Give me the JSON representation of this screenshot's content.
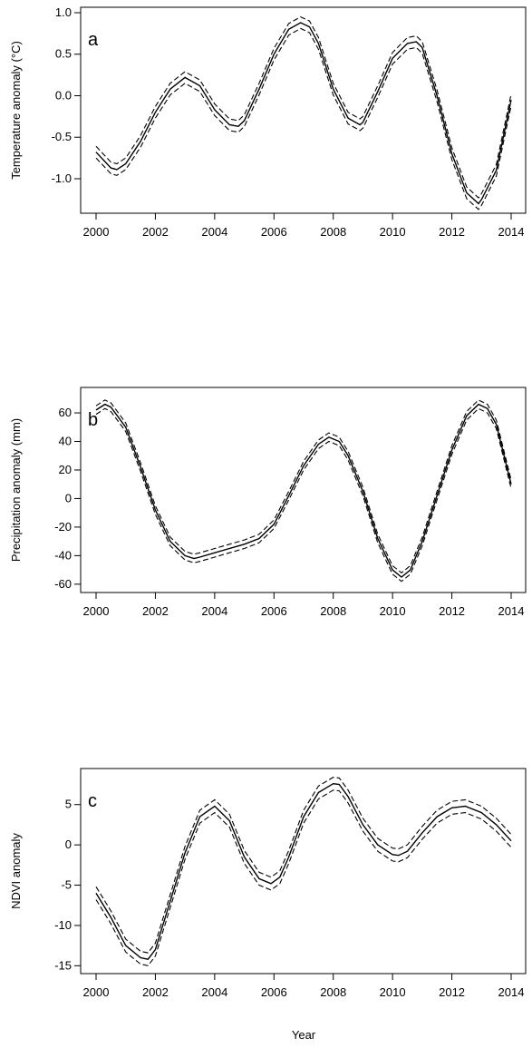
{
  "figure": {
    "xlabel": "Year"
  },
  "chart_data": [
    {
      "type": "line",
      "panel_label": "a",
      "ylabel": "Temperature anomaly (°C)",
      "xlim": [
        2000,
        2014
      ],
      "ylim": [
        -1.35,
        1.0
      ],
      "xticks": [
        "2000",
        "2002",
        "2004",
        "2006",
        "2008",
        "2010",
        "2012",
        "2014"
      ],
      "yticks": [
        "1.0",
        "0.5",
        "0.0",
        "-0.5",
        "-1.0"
      ],
      "band": 0.07,
      "series": [
        {
          "style": "solid",
          "x": [
            2000.0,
            2000.5,
            2000.7,
            2001.0,
            2001.5,
            2002.0,
            2002.5,
            2003.0,
            2003.5,
            2004.0,
            2004.5,
            2004.8,
            2005.0,
            2005.5,
            2006.0,
            2006.5,
            2006.9,
            2007.2,
            2007.5,
            2008.0,
            2008.5,
            2008.9,
            2009.0,
            2009.5,
            2010.0,
            2010.5,
            2010.8,
            2011.0,
            2011.5,
            2012.0,
            2012.5,
            2012.9,
            2013.0,
            2013.5,
            2014.0
          ],
          "y": [
            -0.68,
            -0.87,
            -0.89,
            -0.82,
            -0.55,
            -0.2,
            0.08,
            0.22,
            0.12,
            -0.17,
            -0.35,
            -0.37,
            -0.3,
            0.08,
            0.5,
            0.8,
            0.88,
            0.83,
            0.63,
            0.08,
            -0.27,
            -0.35,
            -0.32,
            0.05,
            0.45,
            0.63,
            0.65,
            0.58,
            0.0,
            -0.7,
            -1.17,
            -1.3,
            -1.25,
            -0.9,
            -0.05
          ]
        }
      ]
    },
    {
      "type": "line",
      "panel_label": "b",
      "ylabel": "Precipitation anomaly (mm)",
      "xlim": [
        2000,
        2014
      ],
      "ylim": [
        -62,
        74
      ],
      "xticks": [
        "2000",
        "2002",
        "2004",
        "2006",
        "2008",
        "2010",
        "2012",
        "2014"
      ],
      "yticks": [
        "60",
        "40",
        "20",
        "0",
        "-20",
        "-40",
        "-60"
      ],
      "band": 3,
      "series": [
        {
          "style": "solid",
          "x": [
            2000.0,
            2000.3,
            2000.5,
            2001.0,
            2001.5,
            2002.0,
            2002.5,
            2003.0,
            2003.3,
            2003.5,
            2004.0,
            2004.5,
            2005.0,
            2005.5,
            2006.0,
            2006.5,
            2007.0,
            2007.5,
            2007.85,
            2008.2,
            2008.5,
            2009.0,
            2009.5,
            2010.0,
            2010.3,
            2010.6,
            2011.0,
            2011.5,
            2012.0,
            2012.5,
            2012.9,
            2013.2,
            2013.5,
            2014.0
          ],
          "y": [
            62,
            66,
            64,
            50,
            22,
            -8,
            -30,
            -40,
            -42,
            -41,
            -38,
            -35,
            -32,
            -28,
            -18,
            2,
            23,
            38,
            43,
            40,
            30,
            5,
            -28,
            -50,
            -55,
            -50,
            -30,
            2,
            34,
            58,
            66,
            63,
            52,
            10
          ]
        }
      ]
    },
    {
      "type": "line",
      "panel_label": "c",
      "ylabel": "NDVI anomaly",
      "xlim": [
        2000,
        2014
      ],
      "ylim": [
        -15.3,
        8.8
      ],
      "xticks": [
        "2000",
        "2002",
        "2004",
        "2006",
        "2008",
        "2010",
        "2012",
        "2014"
      ],
      "yticks": [
        "5",
        "0",
        "-5",
        "-10",
        "-15"
      ],
      "band": 0.8,
      "series": [
        {
          "style": "solid",
          "x": [
            2000.0,
            2000.5,
            2001.0,
            2001.5,
            2001.75,
            2002.0,
            2002.5,
            2003.0,
            2003.5,
            2004.0,
            2004.5,
            2005.0,
            2005.5,
            2005.9,
            2006.2,
            2006.5,
            2007.0,
            2007.5,
            2008.0,
            2008.2,
            2008.5,
            2009.0,
            2009.5,
            2010.0,
            2010.2,
            2010.5,
            2011.0,
            2011.5,
            2012.0,
            2012.45,
            2013.0,
            2013.5,
            2014.0
          ],
          "y": [
            -6.0,
            -9.0,
            -12.5,
            -14.0,
            -14.2,
            -13.0,
            -7.0,
            -1.0,
            3.5,
            4.8,
            3.0,
            -1.5,
            -4.2,
            -4.8,
            -4.0,
            -1.5,
            3.5,
            6.5,
            7.6,
            7.5,
            6.0,
            2.5,
            0.0,
            -1.2,
            -1.3,
            -0.8,
            1.5,
            3.5,
            4.6,
            4.8,
            4.0,
            2.5,
            0.5
          ]
        }
      ]
    }
  ]
}
